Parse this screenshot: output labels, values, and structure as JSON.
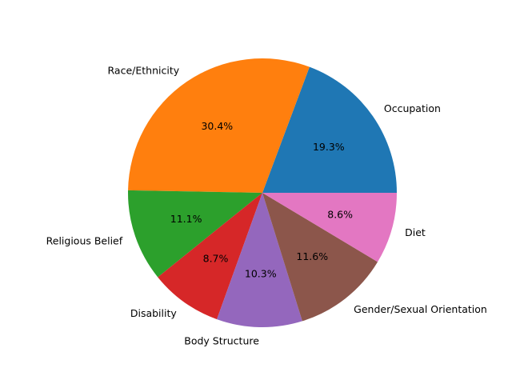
{
  "chart_data": {
    "type": "pie",
    "title": "",
    "start_angle_deg": 0,
    "direction": "counterclockwise",
    "slices": [
      {
        "label": "Occupation",
        "value": 19.3,
        "pct_text": "19.3%",
        "color": "#1f77b4"
      },
      {
        "label": "Race/Ethnicity",
        "value": 30.4,
        "pct_text": "30.4%",
        "color": "#ff7f0e"
      },
      {
        "label": "Religious Belief",
        "value": 11.1,
        "pct_text": "11.1%",
        "color": "#2ca02c"
      },
      {
        "label": "Disability",
        "value": 8.7,
        "pct_text": "8.7%",
        "color": "#d62728"
      },
      {
        "label": "Body Structure",
        "value": 10.3,
        "pct_text": "10.3%",
        "color": "#9467bd"
      },
      {
        "label": "Gender/Sexual Orientation",
        "value": 11.6,
        "pct_text": "11.6%",
        "color": "#8c564b"
      },
      {
        "label": "Diet",
        "value": 8.6,
        "pct_text": "8.6%",
        "color": "#e377c2"
      }
    ]
  }
}
